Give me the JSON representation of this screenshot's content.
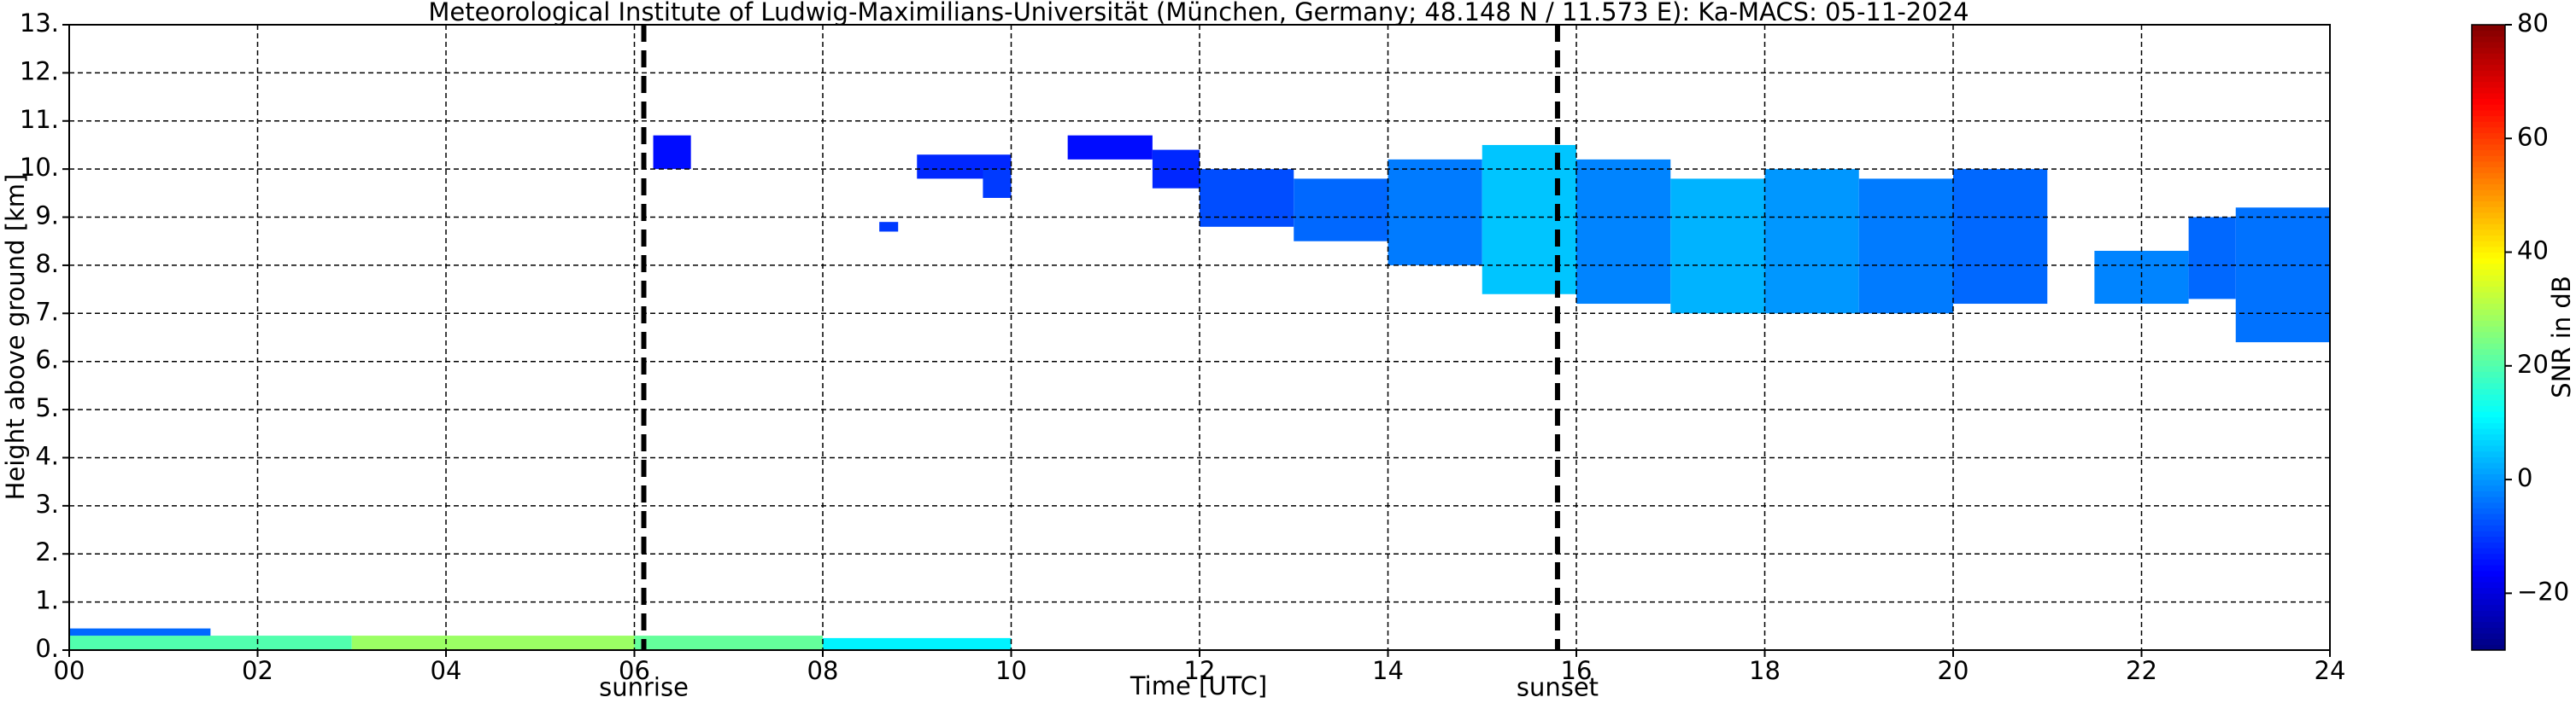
{
  "chart_data": {
    "type": "heatmap",
    "title": "Meteorological Institute of Ludwig-Maximilians-Universität (München, Germany; 48.148 N / 11.573 E):    Ka-MACS: 05-11-2024",
    "x_label": "Time [UTC]",
    "y_label": "Height above ground [km]",
    "colorbar_label": "SNR in dB",
    "xlim": [
      0,
      24
    ],
    "xticks": [
      {
        "value": 0,
        "label": "00"
      },
      {
        "value": 2,
        "label": "02"
      },
      {
        "value": 4,
        "label": "04"
      },
      {
        "value": 6,
        "label": "06"
      },
      {
        "value": 8,
        "label": "08"
      },
      {
        "value": 10,
        "label": "10"
      },
      {
        "value": 12,
        "label": "12"
      },
      {
        "value": 14,
        "label": "14"
      },
      {
        "value": 16,
        "label": "16"
      },
      {
        "value": 18,
        "label": "18"
      },
      {
        "value": 20,
        "label": "20"
      },
      {
        "value": 22,
        "label": "22"
      },
      {
        "value": 24,
        "label": "24"
      }
    ],
    "ylim": [
      0,
      13
    ],
    "yticks": [
      {
        "value": 0,
        "label": "0."
      },
      {
        "value": 1,
        "label": "1."
      },
      {
        "value": 2,
        "label": "2."
      },
      {
        "value": 3,
        "label": "3."
      },
      {
        "value": 4,
        "label": "4."
      },
      {
        "value": 5,
        "label": "5."
      },
      {
        "value": 6,
        "label": "6."
      },
      {
        "value": 7,
        "label": "7."
      },
      {
        "value": 8,
        "label": "8."
      },
      {
        "value": 9,
        "label": "9."
      },
      {
        "value": 10,
        "label": "10."
      },
      {
        "value": 11,
        "label": "11."
      },
      {
        "value": 12,
        "label": "12."
      },
      {
        "value": 13,
        "label": "13."
      }
    ],
    "clim": [
      -30,
      80
    ],
    "cticks": [
      {
        "value": -20,
        "label": "−20"
      },
      0,
      20,
      40,
      60,
      80
    ],
    "grid": true,
    "colormap": "jet",
    "markers": [
      {
        "x": 6.1,
        "label": "sunrise"
      },
      {
        "x": 15.8,
        "label": "sunset"
      }
    ],
    "cells": [
      {
        "x": [
          0,
          3
        ],
        "y": [
          0,
          0.3
        ],
        "value": 20
      },
      {
        "x": [
          3,
          6
        ],
        "y": [
          0,
          0.3
        ],
        "value": 28
      },
      {
        "x": [
          6,
          8
        ],
        "y": [
          0,
          0.3
        ],
        "value": 22
      },
      {
        "x": [
          8,
          10
        ],
        "y": [
          0,
          0.25
        ],
        "value": 10
      },
      {
        "x": [
          0,
          1.5
        ],
        "y": [
          0.3,
          0.45
        ],
        "value": -5
      },
      {
        "x": [
          6.2,
          6.6
        ],
        "y": [
          10,
          10.7
        ],
        "value": -15
      },
      {
        "x": [
          8.6,
          8.8
        ],
        "y": [
          8.7,
          8.9
        ],
        "value": -10
      },
      {
        "x": [
          9,
          10
        ],
        "y": [
          9.8,
          10.3
        ],
        "value": -12
      },
      {
        "x": [
          9.7,
          10
        ],
        "y": [
          9.4,
          10
        ],
        "value": -10
      },
      {
        "x": [
          10.6,
          11.5
        ],
        "y": [
          10.2,
          10.7
        ],
        "value": -15
      },
      {
        "x": [
          11.5,
          12
        ],
        "y": [
          9.6,
          10.4
        ],
        "value": -12
      },
      {
        "x": [
          12,
          13
        ],
        "y": [
          8.8,
          10
        ],
        "value": -8
      },
      {
        "x": [
          13,
          14
        ],
        "y": [
          8.5,
          9.8
        ],
        "value": -5
      },
      {
        "x": [
          14,
          15
        ],
        "y": [
          8,
          10.2
        ],
        "value": -3
      },
      {
        "x": [
          15,
          16
        ],
        "y": [
          7.4,
          10.5
        ],
        "value": 5
      },
      {
        "x": [
          16,
          17
        ],
        "y": [
          7.2,
          10.2
        ],
        "value": -2
      },
      {
        "x": [
          17,
          18
        ],
        "y": [
          7,
          9.8
        ],
        "value": 3
      },
      {
        "x": [
          18,
          19
        ],
        "y": [
          7,
          10
        ],
        "value": 0
      },
      {
        "x": [
          19,
          20
        ],
        "y": [
          7,
          9.8
        ],
        "value": -3
      },
      {
        "x": [
          20,
          21
        ],
        "y": [
          7.2,
          10
        ],
        "value": -5
      },
      {
        "x": [
          21.5,
          22.5
        ],
        "y": [
          7.2,
          8.3
        ],
        "value": -2
      },
      {
        "x": [
          22.5,
          23
        ],
        "y": [
          7.3,
          9
        ],
        "value": -5
      },
      {
        "x": [
          23,
          24
        ],
        "y": [
          6.4,
          9.2
        ],
        "value": -4
      }
    ]
  }
}
